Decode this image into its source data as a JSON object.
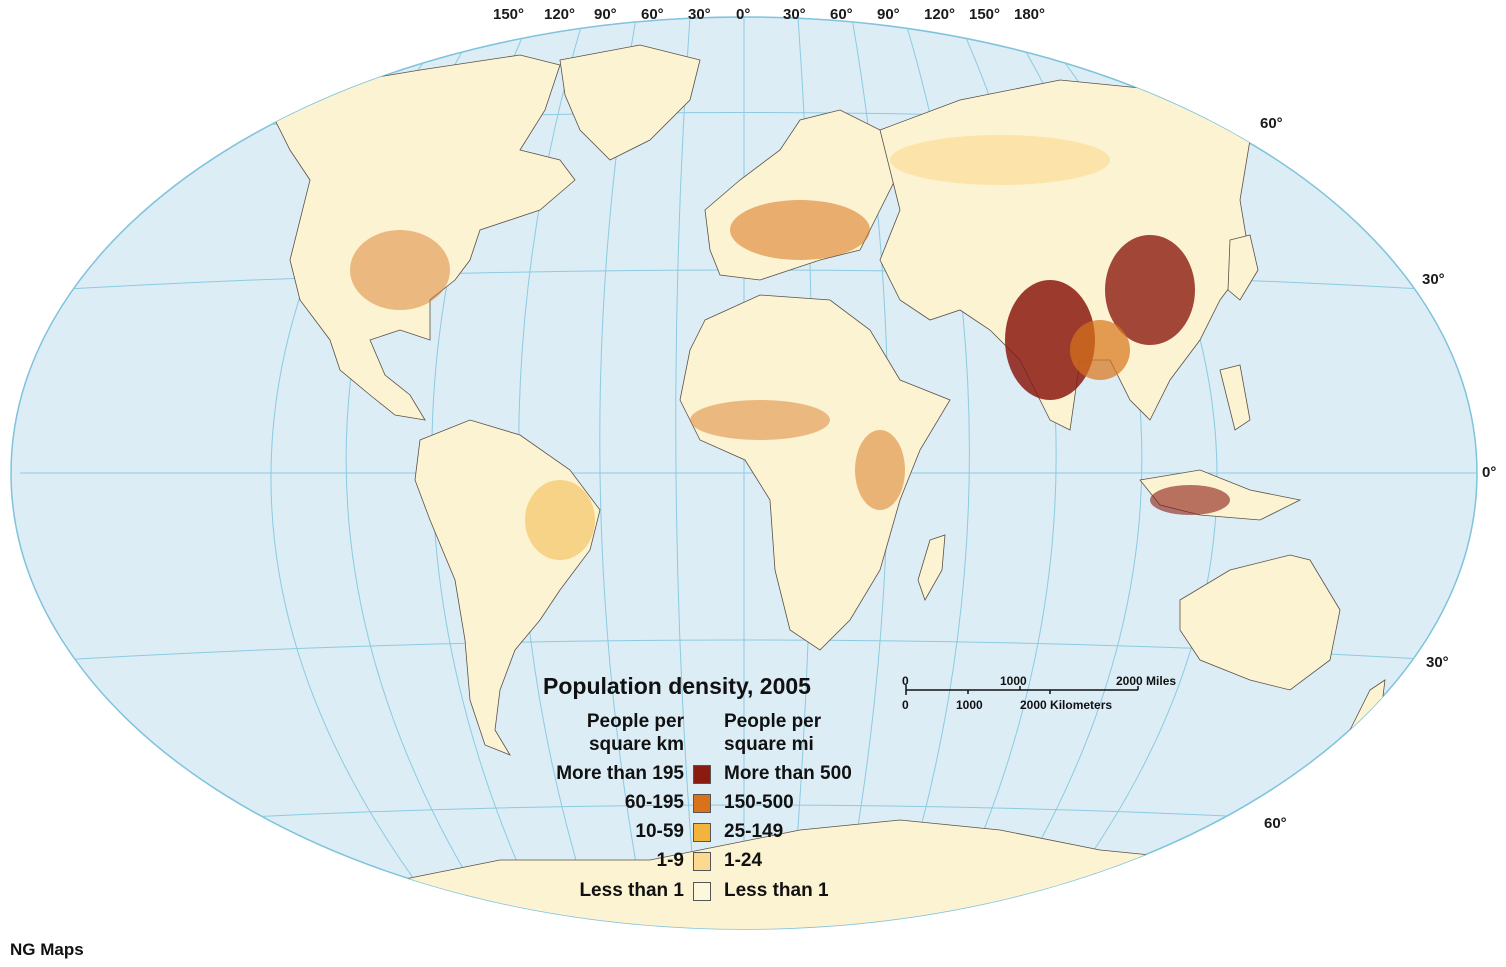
{
  "map": {
    "top_longitudes": [
      "150°",
      "120°",
      "90°",
      "60°",
      "30°",
      "0°",
      "30°",
      "60°",
      "90°",
      "120°",
      "150°",
      "180°"
    ],
    "right_latitudes": [
      "60°",
      "30°",
      "0°",
      "30°",
      "60°"
    ]
  },
  "legend": {
    "title": "Population density, 2005",
    "header_km": "People per square km",
    "header_mi": "People per square mi",
    "classes": [
      {
        "km": "More than 195",
        "mi": "More than 500",
        "color": "#8b1a10"
      },
      {
        "km": "60-195",
        "mi": "150-500",
        "color": "#d8731a"
      },
      {
        "km": "10-59",
        "mi": "25-149",
        "color": "#f2b43c"
      },
      {
        "km": "1-9",
        "mi": "1-24",
        "color": "#fbd990"
      },
      {
        "km": "Less than 1",
        "mi": "Less than 1",
        "color": "#fdf7dc"
      }
    ]
  },
  "scale_bar": {
    "miles_labels": [
      "0",
      "1000",
      "2000 Miles"
    ],
    "km_labels": [
      "0",
      "1000",
      "2000 Kilometers"
    ]
  },
  "credit": "NG Maps",
  "colors": {
    "ocean": "#dcedf6",
    "graticule": "#7fc3dc",
    "land": "#fcf3d2",
    "border": "#5a5148"
  }
}
